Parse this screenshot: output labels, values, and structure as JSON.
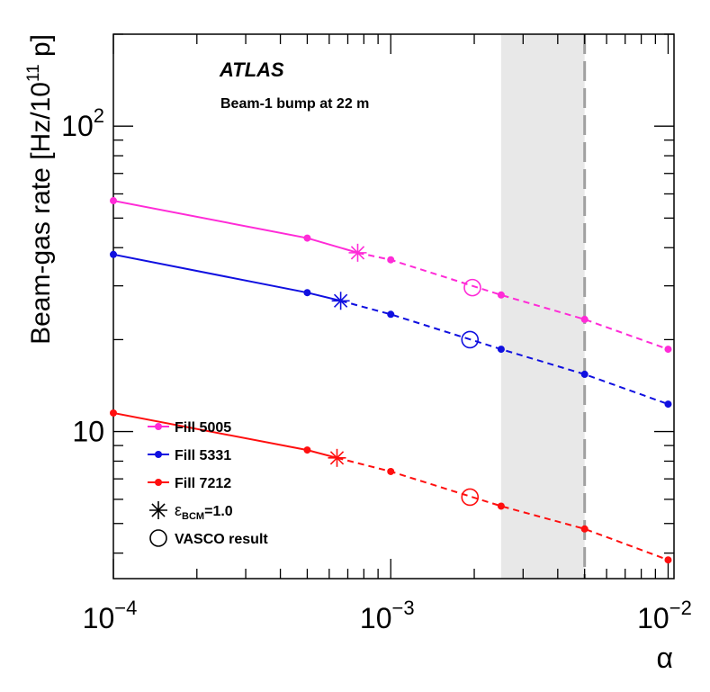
{
  "chart_data": {
    "type": "line",
    "scale": {
      "x": "log",
      "y": "log"
    },
    "xlim": [
      0.0001,
      0.0105
    ],
    "ylim": [
      3.3,
      200
    ],
    "xlabel": "α",
    "ylabel": "Beam-gas rate [Hz/10",
    "ylabel_exp": "11",
    "ylabel_tail": " p]",
    "x_ticks": [
      {
        "value": 0.0001,
        "base": "10",
        "exp": "−4"
      },
      {
        "value": 0.001,
        "base": "10",
        "exp": "−3"
      },
      {
        "value": 0.01,
        "base": "10",
        "exp": "−2"
      }
    ],
    "y_ticks": [
      {
        "value": 10,
        "base": "10",
        "exp": ""
      },
      {
        "value": 100,
        "base": "10",
        "exp": "2"
      }
    ],
    "experiment": "ATLAS",
    "subtitle": "Beam-1 bump at 22 m",
    "band": {
      "from": 0.0025,
      "to": 0.005,
      "color": "#e8e8e8"
    },
    "vline": {
      "x": 0.005,
      "color": "#a0a0a0"
    },
    "series": [
      {
        "name": "Fill 5005",
        "color": "#ff2bd7",
        "solid": [
          [
            0.0001,
            57
          ],
          [
            0.0005,
            43
          ],
          [
            0.00076,
            38.5
          ]
        ],
        "dashed": [
          [
            0.00076,
            38.5
          ],
          [
            0.001,
            36.5
          ],
          [
            0.0025,
            28
          ],
          [
            0.005,
            23.3
          ],
          [
            0.01,
            18.6
          ]
        ],
        "star": [
          0.00076,
          38.5
        ],
        "vasco": [
          0.00197,
          29.6
        ]
      },
      {
        "name": "Fill 5331",
        "color": "#1010e0",
        "solid": [
          [
            0.0001,
            38
          ],
          [
            0.0005,
            28.5
          ],
          [
            0.00066,
            26.8
          ]
        ],
        "dashed": [
          [
            0.00066,
            26.8
          ],
          [
            0.001,
            24.2
          ],
          [
            0.0025,
            18.6
          ],
          [
            0.005,
            15.4
          ],
          [
            0.01,
            12.3
          ]
        ],
        "star": [
          0.00066,
          26.8
        ],
        "vasco": [
          0.00193,
          20
        ]
      },
      {
        "name": "Fill 7212",
        "color": "#ff0f0f",
        "solid": [
          [
            0.0001,
            11.5
          ],
          [
            0.0005,
            8.7
          ],
          [
            0.00064,
            8.2
          ]
        ],
        "dashed": [
          [
            0.00064,
            8.2
          ],
          [
            0.001,
            7.4
          ],
          [
            0.0025,
            5.7
          ],
          [
            0.005,
            4.8
          ],
          [
            0.01,
            3.8
          ]
        ],
        "star": [
          0.00064,
          8.2
        ],
        "vasco": [
          0.00193,
          6.1
        ]
      }
    ],
    "legend": {
      "placement": "bottom-left",
      "entries": [
        {
          "kind": "line",
          "label": "Fill 5005",
          "color": "#ff2bd7"
        },
        {
          "kind": "line",
          "label": "Fill 5331",
          "color": "#1010e0"
        },
        {
          "kind": "line",
          "label": "Fill 7212",
          "color": "#ff0f0f"
        },
        {
          "kind": "star",
          "label": "ε",
          "sub": "BCM",
          "tail": "=1.0"
        },
        {
          "kind": "circle",
          "label": "VASCO result"
        }
      ]
    }
  }
}
